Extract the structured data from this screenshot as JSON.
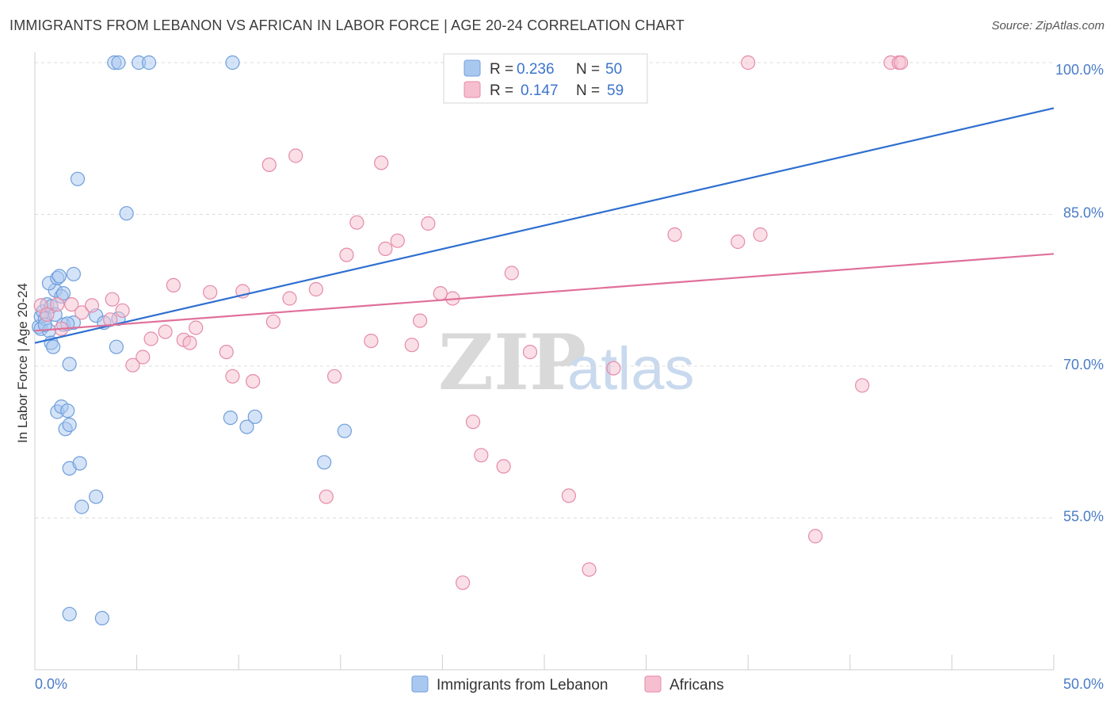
{
  "title": "IMMIGRANTS FROM LEBANON VS AFRICAN IN LABOR FORCE | AGE 20-24 CORRELATION CHART",
  "source": "Source: ZipAtlas.com",
  "watermark": {
    "zip": "ZIP",
    "atlas": "atlas"
  },
  "legend": {
    "r_label": "R =",
    "n_label": "N =",
    "rows": [
      {
        "r": "0.236",
        "n": "50",
        "color": "#a9c8f0"
      },
      {
        "r": "0.147",
        "n": "59",
        "color": "#f6bfd0"
      }
    ]
  },
  "bottom_legend": [
    {
      "label": "Immigrants from Lebanon",
      "color": "#a9c8f0"
    },
    {
      "label": "Africans",
      "color": "#f6bfd0"
    }
  ],
  "chart_data": {
    "type": "scatter",
    "title": "IMMIGRANTS FROM LEBANON VS AFRICAN IN LABOR FORCE | AGE 20-24 CORRELATION CHART",
    "xlabel": "",
    "ylabel": "In Labor Force | Age 20-24",
    "xlim": [
      0,
      50
    ],
    "ylim": [
      40,
      101.5
    ],
    "x_tick_labels": [
      "0.0%",
      "50.0%"
    ],
    "y_ticks": [
      55,
      70,
      85,
      100
    ],
    "y_tick_labels": [
      "55.0%",
      "70.0%",
      "85.0%",
      "100.0%"
    ],
    "grid": true,
    "legend_position": "top-center",
    "series": [
      {
        "name": "Immigrants from Lebanon",
        "color": "#a9c8f0",
        "stroke": "#6f9fdc",
        "line_color": "#2e6fd0",
        "trend": {
          "x0": 0,
          "y0": 72.3,
          "x1": 50,
          "y1": 95.5
        },
        "points": [
          [
            0.2,
            73.9
          ],
          [
            0.3,
            74.9
          ],
          [
            0.3,
            73.7
          ],
          [
            0.4,
            75.4
          ],
          [
            0.5,
            74.7
          ],
          [
            0.6,
            76.1
          ],
          [
            0.7,
            73.5
          ],
          [
            0.8,
            72.3
          ],
          [
            0.9,
            71.9
          ],
          [
            1.0,
            77.5
          ],
          [
            0.8,
            75.9
          ],
          [
            0.7,
            78.2
          ],
          [
            1.0,
            75.1
          ],
          [
            1.1,
            78.7
          ],
          [
            1.2,
            78.9
          ],
          [
            1.3,
            76.9
          ],
          [
            1.4,
            74.1
          ],
          [
            1.4,
            77.2
          ],
          [
            1.9,
            79.1
          ],
          [
            1.9,
            74.3
          ],
          [
            2.1,
            88.5
          ],
          [
            1.1,
            65.5
          ],
          [
            1.3,
            66.0
          ],
          [
            1.6,
            65.6
          ],
          [
            1.5,
            63.8
          ],
          [
            1.7,
            64.2
          ],
          [
            1.7,
            59.9
          ],
          [
            2.2,
            60.4
          ],
          [
            2.3,
            56.1
          ],
          [
            3.0,
            57.1
          ],
          [
            1.7,
            70.2
          ],
          [
            3.0,
            75.0
          ],
          [
            3.4,
            74.3
          ],
          [
            4.1,
            74.7
          ],
          [
            4.0,
            71.9
          ],
          [
            4.5,
            85.1
          ],
          [
            3.9,
            100.0
          ],
          [
            4.1,
            100.0
          ],
          [
            5.1,
            100.0
          ],
          [
            5.6,
            100.0
          ],
          [
            9.7,
            100.0
          ],
          [
            9.6,
            64.9
          ],
          [
            10.4,
            64.0
          ],
          [
            10.8,
            65.0
          ],
          [
            14.2,
            60.5
          ],
          [
            15.2,
            63.6
          ],
          [
            1.7,
            45.5
          ],
          [
            3.3,
            45.1
          ],
          [
            0.5,
            74.1
          ],
          [
            1.6,
            74.2
          ]
        ]
      },
      {
        "name": "Africans",
        "color": "#f6bfd0",
        "stroke": "#e58aa9",
        "line_color": "#e0709a",
        "trend": {
          "x0": 0,
          "y0": 73.5,
          "x1": 50,
          "y1": 81.1
        },
        "points": [
          [
            0.3,
            76.0
          ],
          [
            0.6,
            75.1
          ],
          [
            1.1,
            76.1
          ],
          [
            1.3,
            73.7
          ],
          [
            1.8,
            76.1
          ],
          [
            2.3,
            75.3
          ],
          [
            2.8,
            76.0
          ],
          [
            3.7,
            74.6
          ],
          [
            3.8,
            76.6
          ],
          [
            4.3,
            75.5
          ],
          [
            4.8,
            70.1
          ],
          [
            5.3,
            70.9
          ],
          [
            5.7,
            72.7
          ],
          [
            6.4,
            73.4
          ],
          [
            6.8,
            78.0
          ],
          [
            7.3,
            72.6
          ],
          [
            7.6,
            72.3
          ],
          [
            7.9,
            73.8
          ],
          [
            8.6,
            77.3
          ],
          [
            9.4,
            71.4
          ],
          [
            9.7,
            69.0
          ],
          [
            10.2,
            77.4
          ],
          [
            10.7,
            68.5
          ],
          [
            11.5,
            89.9
          ],
          [
            11.7,
            74.4
          ],
          [
            12.5,
            76.7
          ],
          [
            12.8,
            90.8
          ],
          [
            13.8,
            77.6
          ],
          [
            14.3,
            57.1
          ],
          [
            14.7,
            69.0
          ],
          [
            15.3,
            81.0
          ],
          [
            15.8,
            84.2
          ],
          [
            16.5,
            72.5
          ],
          [
            17.0,
            90.1
          ],
          [
            17.2,
            81.6
          ],
          [
            17.8,
            82.4
          ],
          [
            18.5,
            72.1
          ],
          [
            18.9,
            74.5
          ],
          [
            19.3,
            84.1
          ],
          [
            19.9,
            77.2
          ],
          [
            20.5,
            76.7
          ],
          [
            21.0,
            48.6
          ],
          [
            21.5,
            64.5
          ],
          [
            21.9,
            61.2
          ],
          [
            23.0,
            60.1
          ],
          [
            23.4,
            79.2
          ],
          [
            24.3,
            71.4
          ],
          [
            26.2,
            57.2
          ],
          [
            27.2,
            49.9
          ],
          [
            28.4,
            69.8
          ],
          [
            31.4,
            83.0
          ],
          [
            34.5,
            82.3
          ],
          [
            35.0,
            100.0
          ],
          [
            35.6,
            83.0
          ],
          [
            38.3,
            53.2
          ],
          [
            40.6,
            68.1
          ],
          [
            42.0,
            100.0
          ],
          [
            42.4,
            100.0
          ],
          [
            42.5,
            100.0
          ]
        ]
      }
    ]
  }
}
